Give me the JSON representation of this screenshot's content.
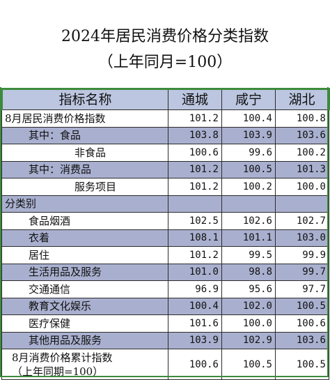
{
  "title": {
    "line1": "2024年居民消费价格分类指数",
    "line2": "（上年同月=100）"
  },
  "table": {
    "headers": [
      "指标名称",
      "通城",
      "咸宁",
      "湖北"
    ],
    "rows": [
      {
        "label": "8月居民消费价格指数",
        "indent": 0,
        "values": [
          "101.2",
          "100.4",
          "100.8"
        ],
        "shade": "white"
      },
      {
        "label": "其中：食品",
        "indent": 2,
        "values": [
          "103.8",
          "103.9",
          "103.6"
        ],
        "shade": "blue"
      },
      {
        "label": "非食品",
        "indent": 6,
        "values": [
          "100.6",
          "99.6",
          "100.2"
        ],
        "shade": "white"
      },
      {
        "label": "其中：消费品",
        "indent": 2,
        "values": [
          "101.2",
          "100.5",
          "101.3"
        ],
        "shade": "blue"
      },
      {
        "label": "服务项目",
        "indent": 6,
        "values": [
          "101.2",
          "100.2",
          "100.0"
        ],
        "shade": "white"
      },
      {
        "label": "分类别",
        "indent": 0,
        "values": [
          "",
          "",
          ""
        ],
        "shade": "blue"
      },
      {
        "label": "食品烟酒",
        "indent": 2,
        "values": [
          "102.5",
          "102.6",
          "102.7"
        ],
        "shade": "white"
      },
      {
        "label": "衣着",
        "indent": 2,
        "values": [
          "108.1",
          "101.1",
          "103.0"
        ],
        "shade": "blue"
      },
      {
        "label": "居住",
        "indent": 2,
        "values": [
          "101.2",
          "99.5",
          "99.9"
        ],
        "shade": "white"
      },
      {
        "label": "生活用品及服务",
        "indent": 2,
        "values": [
          "101.0",
          "98.8",
          "99.7"
        ],
        "shade": "blue"
      },
      {
        "label": "交通通信",
        "indent": 2,
        "values": [
          "96.9",
          "95.6",
          "97.7"
        ],
        "shade": "white"
      },
      {
        "label": "教育文化娱乐",
        "indent": 2,
        "values": [
          "100.4",
          "102.0",
          "100.5"
        ],
        "shade": "blue"
      },
      {
        "label": "医疗保健",
        "indent": 2,
        "values": [
          "101.6",
          "100.0",
          "100.6"
        ],
        "shade": "white"
      },
      {
        "label": "其他用品及服务",
        "indent": 2,
        "values": [
          "103.9",
          "102.9",
          "103.6"
        ],
        "shade": "blue"
      }
    ],
    "cumulative": {
      "label_line1": "8月消费价格累计指数",
      "label_line2": "（上年同期=100）",
      "values": [
        "100.6",
        "100.5",
        "100.5"
      ]
    }
  },
  "colors": {
    "header_bg": "#bcc6e0",
    "row_blue": "#a9b0cf",
    "frame_green": "#3c8a3c"
  }
}
